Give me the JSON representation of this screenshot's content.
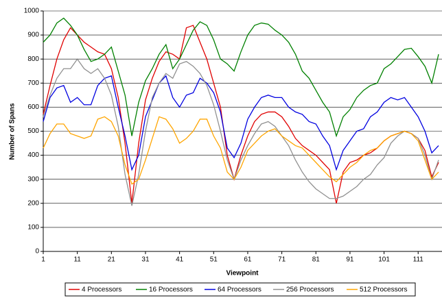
{
  "chart_data": {
    "type": "line",
    "x_label": "Viewpoint",
    "y_label": "Number of Spans",
    "x": [
      1,
      3,
      5,
      7,
      9,
      11,
      13,
      15,
      17,
      19,
      21,
      23,
      25,
      27,
      29,
      31,
      33,
      35,
      37,
      39,
      41,
      43,
      45,
      47,
      49,
      51,
      53,
      55,
      57,
      59,
      61,
      63,
      65,
      67,
      69,
      71,
      73,
      75,
      77,
      79,
      81,
      83,
      85,
      87,
      89,
      91,
      93,
      95,
      97,
      99,
      101,
      103,
      105,
      107,
      109,
      111,
      113,
      115,
      117
    ],
    "xlim": [
      1,
      118
    ],
    "xticks": [
      1,
      11,
      21,
      31,
      41,
      51,
      61,
      71,
      81,
      91,
      101,
      111
    ],
    "ylim": [
      0,
      1000
    ],
    "yticks": [
      0,
      100,
      200,
      300,
      400,
      500,
      600,
      700,
      800,
      900,
      1000
    ],
    "grid": true,
    "legend": "bottom",
    "series": [
      {
        "name": "4 Processors",
        "color": "#e00000",
        "values": [
          570,
          690,
          800,
          880,
          930,
          900,
          870,
          850,
          830,
          820,
          760,
          640,
          450,
          200,
          450,
          630,
          720,
          790,
          830,
          820,
          800,
          930,
          940,
          870,
          800,
          700,
          600,
          400,
          300,
          400,
          480,
          540,
          570,
          580,
          580,
          560,
          520,
          470,
          440,
          420,
          400,
          370,
          340,
          200,
          330,
          370,
          380,
          400,
          410,
          430,
          460,
          480,
          490,
          500,
          490,
          470,
          420,
          310,
          370
        ]
      },
      {
        "name": "16 Processors",
        "color": "#008000",
        "values": [
          870,
          900,
          950,
          970,
          940,
          900,
          840,
          790,
          800,
          820,
          850,
          750,
          650,
          480,
          620,
          710,
          760,
          820,
          860,
          760,
          800,
          860,
          920,
          955,
          940,
          880,
          800,
          780,
          750,
          830,
          900,
          940,
          950,
          945,
          920,
          900,
          870,
          820,
          750,
          720,
          670,
          620,
          580,
          480,
          560,
          590,
          640,
          670,
          690,
          700,
          760,
          780,
          810,
          840,
          845,
          810,
          770,
          700,
          820
        ]
      },
      {
        "name": "64 Processors",
        "color": "#0000e0",
        "values": [
          540,
          640,
          680,
          690,
          620,
          640,
          610,
          610,
          690,
          720,
          730,
          600,
          480,
          340,
          400,
          560,
          630,
          700,
          730,
          640,
          600,
          650,
          660,
          720,
          700,
          660,
          580,
          430,
          390,
          450,
          550,
          600,
          640,
          650,
          640,
          640,
          600,
          580,
          570,
          540,
          530,
          480,
          440,
          340,
          420,
          460,
          500,
          510,
          560,
          580,
          620,
          640,
          630,
          640,
          600,
          560,
          500,
          410,
          440
        ]
      },
      {
        "name": "256 Processors",
        "color": "#909090",
        "values": [
          560,
          650,
          720,
          760,
          760,
          800,
          760,
          740,
          760,
          720,
          650,
          520,
          320,
          190,
          320,
          500,
          640,
          700,
          740,
          720,
          780,
          790,
          770,
          740,
          690,
          610,
          500,
          380,
          300,
          380,
          440,
          490,
          530,
          540,
          520,
          480,
          440,
          380,
          330,
          290,
          260,
          240,
          220,
          220,
          230,
          250,
          270,
          300,
          320,
          360,
          390,
          450,
          480,
          500,
          490,
          470,
          400,
          300,
          380
        ]
      },
      {
        "name": "512 Processors",
        "color": "#ffa500",
        "values": [
          430,
          490,
          530,
          530,
          490,
          480,
          470,
          480,
          550,
          560,
          540,
          480,
          360,
          280,
          300,
          380,
          470,
          560,
          550,
          510,
          450,
          470,
          500,
          550,
          550,
          480,
          430,
          330,
          300,
          350,
          420,
          450,
          480,
          500,
          510,
          480,
          460,
          440,
          430,
          400,
          370,
          340,
          310,
          290,
          320,
          350,
          370,
          400,
          420,
          430,
          460,
          480,
          490,
          500,
          490,
          460,
          380,
          300,
          330
        ]
      }
    ]
  }
}
